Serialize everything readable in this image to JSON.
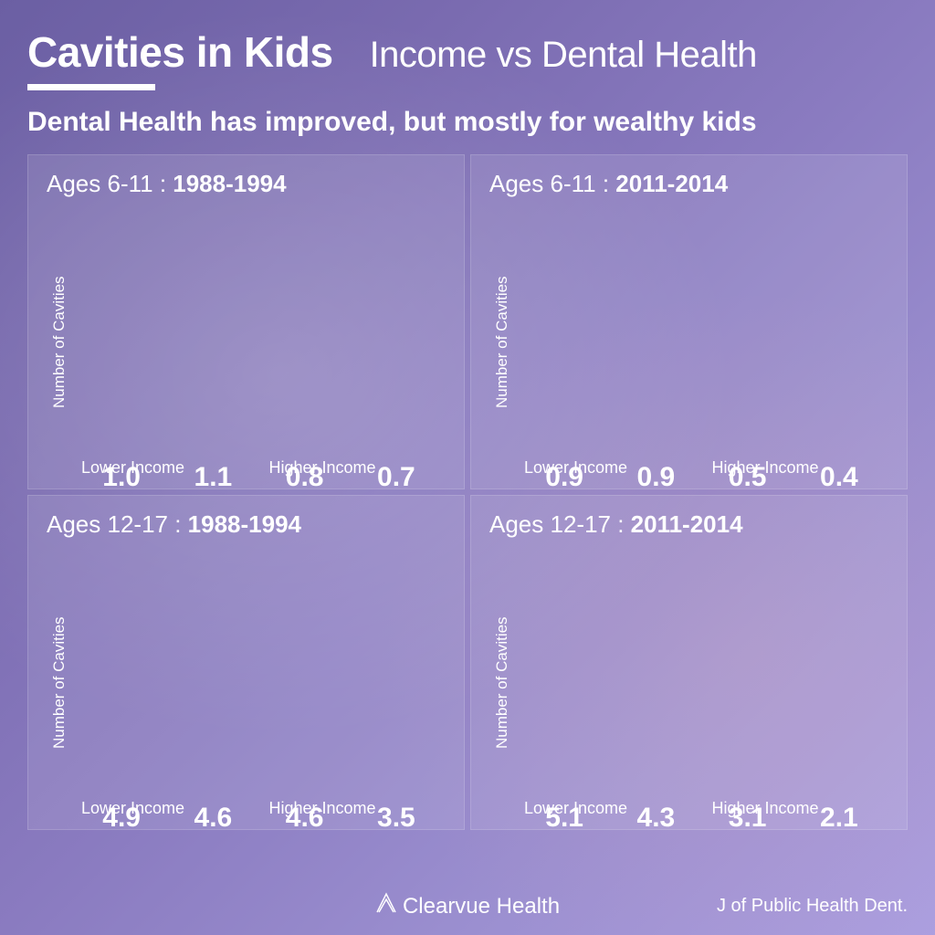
{
  "title_main": "Cavities in Kids",
  "title_sub": "Income vs Dental Health",
  "subtitle": "Dental Health has improved, but mostly for wealthy kids",
  "brand": "Clearvue Health",
  "source": "J of Public Health Dent.",
  "ylabel": "Number of Cavities",
  "xlabel_left": "Lower Income",
  "xlabel_right": "Higher Income",
  "bar_colors": [
    "#3e52b5",
    "#3f74c8",
    "#4b93cc",
    "#58abc7"
  ],
  "panels": [
    {
      "age": "Ages 6-11",
      "period": "1988-1994",
      "values": [
        1.0,
        1.1,
        0.8,
        0.7
      ],
      "labels": [
        "1.0",
        "1.1",
        "0.8",
        "0.7"
      ],
      "ymax": 1.2
    },
    {
      "age": "Ages 6-11",
      "period": "2011-2014",
      "values": [
        0.9,
        0.9,
        0.5,
        0.4
      ],
      "labels": [
        "0.9",
        "0.9",
        "0.5",
        "0.4"
      ],
      "ymax": 1.2
    },
    {
      "age": "Ages 12-17",
      "period": "1988-1994",
      "values": [
        4.9,
        4.6,
        4.6,
        3.5
      ],
      "labels": [
        "4.9",
        "4.6",
        "4.6",
        "3.5"
      ],
      "ymax": 5.4
    },
    {
      "age": "Ages 12-17",
      "period": "2011-2014",
      "values": [
        5.1,
        4.3,
        3.1,
        2.1
      ],
      "labels": [
        "5.1",
        "4.3",
        "3.1",
        "2.1"
      ],
      "ymax": 5.4
    }
  ]
}
